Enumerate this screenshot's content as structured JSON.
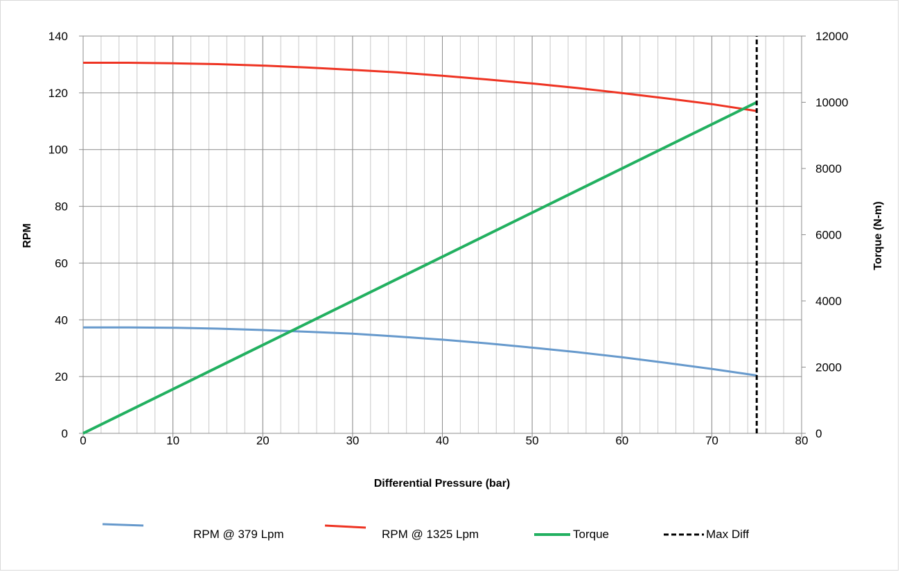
{
  "chart_data": {
    "type": "line",
    "title": "",
    "xlabel": "Differential Pressure (bar)",
    "ylabel": "RPM",
    "y2label": "Torque (N-m)",
    "xlim": [
      0,
      80
    ],
    "ylim": [
      0,
      140
    ],
    "y2lim": [
      0,
      12000
    ],
    "x_ticks": [
      0,
      10,
      20,
      30,
      40,
      50,
      60,
      70,
      80
    ],
    "y_ticks": [
      0,
      20,
      40,
      60,
      80,
      100,
      120,
      140
    ],
    "y2_ticks": [
      0,
      2000,
      4000,
      6000,
      8000,
      10000,
      12000
    ],
    "grid": true,
    "legend_position": "bottom",
    "series": [
      {
        "name": "RPM @ 379 Lpm",
        "axis": "left",
        "color": "#6699cc",
        "x": [
          0,
          5,
          10,
          15,
          20,
          25,
          30,
          35,
          40,
          45,
          50,
          55,
          60,
          65,
          70,
          75
        ],
        "y": [
          37.3,
          37.3,
          37.2,
          36.9,
          36.4,
          35.8,
          35.1,
          34.1,
          33.0,
          31.7,
          30.2,
          28.6,
          26.8,
          24.8,
          22.7,
          20.4
        ]
      },
      {
        "name": "RPM @ 1325 Lpm",
        "axis": "left",
        "color": "#ee3322",
        "x": [
          0,
          5,
          10,
          15,
          20,
          25,
          30,
          35,
          40,
          45,
          50,
          55,
          60,
          65,
          70,
          75
        ],
        "y": [
          130.6,
          130.6,
          130.4,
          130.1,
          129.6,
          128.9,
          128.1,
          127.2,
          126.0,
          124.7,
          123.3,
          121.7,
          119.9,
          118.0,
          116.0,
          113.6
        ]
      },
      {
        "name": "Torque",
        "axis": "right",
        "color": "#22b060",
        "x": [
          0,
          75
        ],
        "y": [
          0,
          10000
        ]
      },
      {
        "name": "Max Diff",
        "axis": "left",
        "color": "#000000",
        "dashed": true,
        "x": [
          75,
          75
        ],
        "y": [
          0,
          140
        ]
      }
    ]
  }
}
